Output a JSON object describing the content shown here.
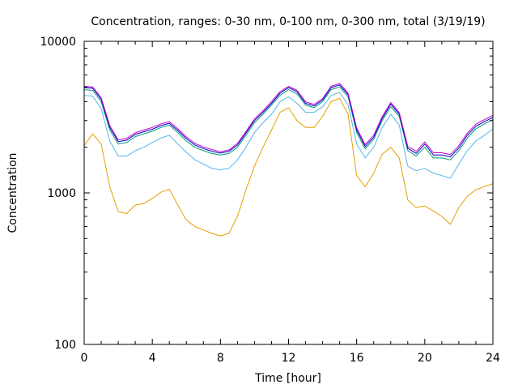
{
  "chart_data": {
    "type": "line",
    "title": "Concentration, ranges: 0-30 nm, 0-100 nm, 0-300 nm, total (3/19/19)",
    "xlabel": "Time [hour]",
    "ylabel": "Concentration",
    "xlim": [
      0,
      24
    ],
    "ylim": [
      100,
      10000
    ],
    "yscale": "log",
    "grid": false,
    "legend": "none",
    "xticks": [
      0,
      4,
      8,
      12,
      16,
      20,
      24
    ],
    "yticks": [
      100,
      1000,
      10000
    ],
    "x": [
      0,
      0.5,
      1,
      1.5,
      2,
      2.5,
      3,
      3.5,
      4,
      4.5,
      5,
      5.5,
      6,
      6.5,
      7,
      7.5,
      8,
      8.5,
      9,
      9.5,
      10,
      10.5,
      11,
      11.5,
      12,
      12.5,
      13,
      13.5,
      14,
      14.5,
      15,
      15.5,
      16,
      16.5,
      17,
      17.5,
      18,
      18.5,
      19,
      19.5,
      20,
      20.5,
      21,
      21.5,
      22,
      22.5,
      23,
      23.5,
      24
    ],
    "series": [
      {
        "color": "#e69f00",
        "values": [
          2050,
          2450,
          2100,
          1100,
          750,
          730,
          830,
          850,
          920,
          1010,
          1060,
          830,
          660,
          600,
          570,
          540,
          520,
          540,
          700,
          1050,
          1500,
          2000,
          2600,
          3400,
          3650,
          3000,
          2700,
          2700,
          3200,
          4000,
          4200,
          3300,
          1300,
          1100,
          1350,
          1800,
          2000,
          1700,
          900,
          800,
          820,
          760,
          700,
          620,
          800,
          950,
          1050,
          1100,
          1150
        ]
      },
      {
        "color": "#56b4e9",
        "values": [
          4400,
          4350,
          3600,
          2200,
          1750,
          1750,
          1900,
          2000,
          2150,
          2300,
          2400,
          2100,
          1850,
          1650,
          1550,
          1450,
          1420,
          1450,
          1650,
          2000,
          2500,
          2900,
          3300,
          4000,
          4300,
          3900,
          3400,
          3400,
          3700,
          4400,
          4600,
          3800,
          2100,
          1700,
          2000,
          2700,
          3300,
          2800,
          1500,
          1400,
          1450,
          1350,
          1300,
          1250,
          1550,
          1900,
          2200,
          2400,
          2650
        ]
      },
      {
        "color": "#009e73",
        "values": [
          4800,
          4750,
          4000,
          2600,
          2100,
          2150,
          2350,
          2450,
          2550,
          2700,
          2800,
          2500,
          2200,
          2000,
          1900,
          1820,
          1780,
          1820,
          2000,
          2400,
          2900,
          3300,
          3800,
          4400,
          4800,
          4500,
          3800,
          3650,
          4000,
          4800,
          5000,
          4300,
          2500,
          1950,
          2250,
          3000,
          3700,
          3200,
          1900,
          1750,
          2000,
          1700,
          1700,
          1650,
          1900,
          2300,
          2650,
          2850,
          3050
        ]
      },
      {
        "color": "#0000cc",
        "values": [
          4950,
          4900,
          4150,
          2700,
          2180,
          2230,
          2430,
          2530,
          2630,
          2780,
          2880,
          2580,
          2280,
          2070,
          1960,
          1880,
          1830,
          1880,
          2070,
          2480,
          3000,
          3400,
          3900,
          4550,
          4950,
          4650,
          3900,
          3750,
          4100,
          4950,
          5150,
          4450,
          2600,
          2020,
          2330,
          3100,
          3850,
          3300,
          1970,
          1820,
          2100,
          1780,
          1780,
          1730,
          1980,
          2400,
          2750,
          2950,
          3150
        ]
      },
      {
        "color": "#cc00cc",
        "values": [
          5050,
          5000,
          4250,
          2780,
          2240,
          2290,
          2490,
          2600,
          2700,
          2850,
          2950,
          2650,
          2340,
          2120,
          2010,
          1930,
          1870,
          1920,
          2120,
          2540,
          3070,
          3480,
          4000,
          4650,
          5050,
          4750,
          3990,
          3830,
          4200,
          5050,
          5270,
          4550,
          2680,
          2080,
          2400,
          3180,
          3950,
          3390,
          2030,
          1880,
          2170,
          1840,
          1840,
          1790,
          2050,
          2480,
          2840,
          3040,
          3250
        ]
      }
    ]
  }
}
